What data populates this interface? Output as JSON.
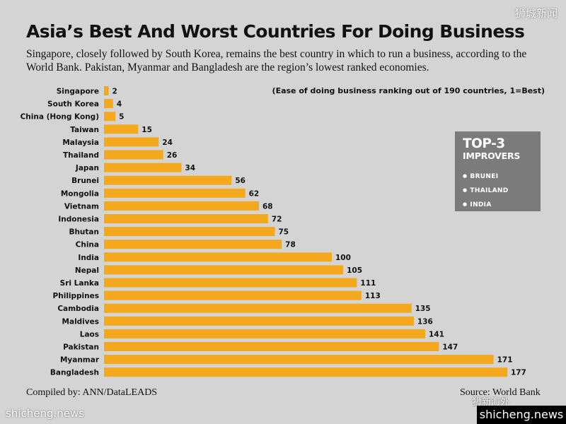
{
  "watermarks": {
    "top_right": "狮城新闻",
    "bottom_left": "shicheng.news",
    "bottom_badge": "狮新海外",
    "bottom_right": "shicheng.news"
  },
  "header": {
    "title": "Asia’s Best And Worst Countries For Doing Business",
    "subtitle": "Singapore, closely followed by South Korea, remains the best country in which to run a business, according to the World Bank. Pakistan, Myanmar and Bangladesh are the region’s lowest ranked economies."
  },
  "note": "(Ease of doing business ranking out of 190 countries, 1=Best)",
  "top3": {
    "title": "TOP-3",
    "subtitle": "IMPROVERS",
    "items": [
      "BRUNEI",
      "THAILAND",
      "INDIA"
    ]
  },
  "footer": {
    "left": "Compiled by: ANN/DataLEADS",
    "right": "Source: World Bank"
  },
  "colors": {
    "bar": "#f3a81e",
    "background": "#d4d4d4",
    "text": "#111111"
  },
  "chart_data": {
    "type": "bar",
    "orientation": "horizontal",
    "title": "Asia’s Best And Worst Countries For Doing Business",
    "categories": [
      "Singapore",
      "South Korea",
      "China (Hong Kong)",
      "Taiwan",
      "Malaysia",
      "Thailand",
      "Japan",
      "Brunei",
      "Mongolia",
      "Vietnam",
      "Indonesia",
      "Bhutan",
      "China",
      "India",
      "Nepal",
      "Sri Lanka",
      "Philippines",
      "Cambodia",
      "Maldives",
      "Laos",
      "Pakistan",
      "Myanmar",
      "Bangladesh"
    ],
    "values": [
      2,
      4,
      5,
      15,
      24,
      26,
      34,
      56,
      62,
      68,
      72,
      75,
      78,
      100,
      105,
      111,
      113,
      135,
      136,
      141,
      147,
      171,
      177
    ],
    "xlim": [
      0,
      190
    ],
    "grid": false,
    "data_labels": true
  }
}
